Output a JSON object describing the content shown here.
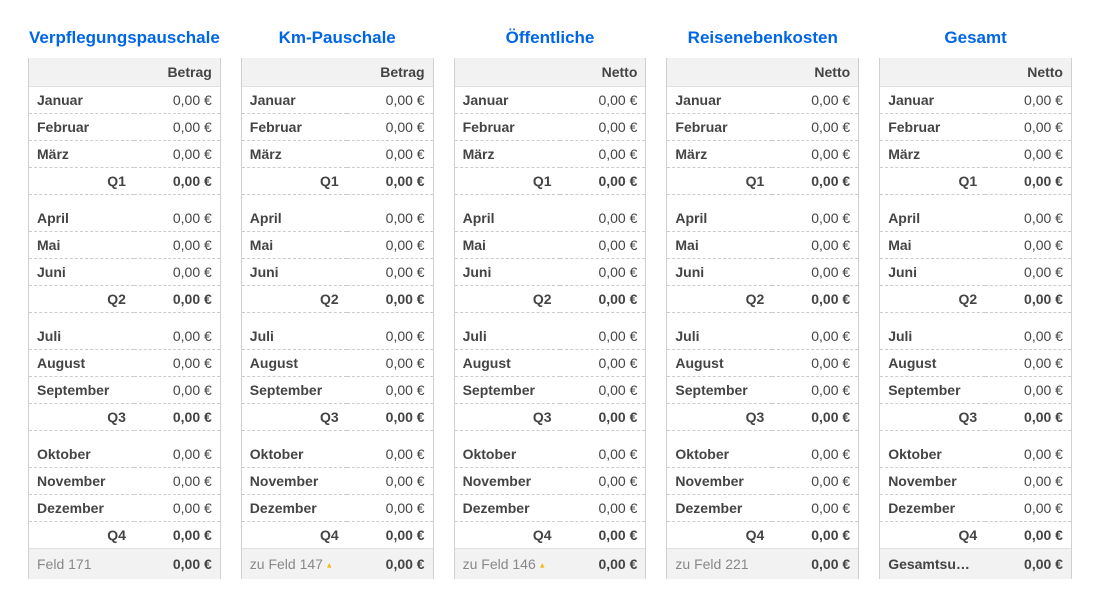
{
  "months": [
    "Januar",
    "Februar",
    "März",
    "April",
    "Mai",
    "Juni",
    "Juli",
    "August",
    "September",
    "Oktober",
    "November",
    "Dezember"
  ],
  "quarters": [
    "Q1",
    "Q2",
    "Q3",
    "Q4"
  ],
  "zero": "0,00 €",
  "columns": [
    {
      "title": "Verpflegungspauschale",
      "headerLabel": "",
      "headerValue": "Betrag",
      "footerLabel": "Feld 171",
      "footerValue": "0,00 €",
      "footerMarker": false,
      "footerBold": false,
      "months": [
        "0,00 €",
        "0,00 €",
        "0,00 €",
        "0,00 €",
        "0,00 €",
        "0,00 €",
        "0,00 €",
        "0,00 €",
        "0,00 €",
        "0,00 €",
        "0,00 €",
        "0,00 €"
      ],
      "quarters": [
        "0,00 €",
        "0,00 €",
        "0,00 €",
        "0,00 €"
      ]
    },
    {
      "title": "Km-Pauschale",
      "headerLabel": "",
      "headerValue": "Betrag",
      "footerLabel": "zu Feld 147",
      "footerValue": "0,00 €",
      "footerMarker": true,
      "footerBold": false,
      "months": [
        "0,00 €",
        "0,00 €",
        "0,00 €",
        "0,00 €",
        "0,00 €",
        "0,00 €",
        "0,00 €",
        "0,00 €",
        "0,00 €",
        "0,00 €",
        "0,00 €",
        "0,00 €"
      ],
      "quarters": [
        "0,00 €",
        "0,00 €",
        "0,00 €",
        "0,00 €"
      ]
    },
    {
      "title": "Öffentliche",
      "headerLabel": "",
      "headerValue": "Netto",
      "footerLabel": "zu Feld 146",
      "footerValue": "0,00 €",
      "footerMarker": true,
      "footerBold": false,
      "months": [
        "0,00 €",
        "0,00 €",
        "0,00 €",
        "0,00 €",
        "0,00 €",
        "0,00 €",
        "0,00 €",
        "0,00 €",
        "0,00 €",
        "0,00 €",
        "0,00 €",
        "0,00 €"
      ],
      "quarters": [
        "0,00 €",
        "0,00 €",
        "0,00 €",
        "0,00 €"
      ]
    },
    {
      "title": "Reisenebenkosten",
      "headerLabel": "",
      "headerValue": "Netto",
      "footerLabel": "zu Feld 221",
      "footerValue": "0,00 €",
      "footerMarker": false,
      "footerBold": false,
      "months": [
        "0,00 €",
        "0,00 €",
        "0,00 €",
        "0,00 €",
        "0,00 €",
        "0,00 €",
        "0,00 €",
        "0,00 €",
        "0,00 €",
        "0,00 €",
        "0,00 €",
        "0,00 €"
      ],
      "quarters": [
        "0,00 €",
        "0,00 €",
        "0,00 €",
        "0,00 €"
      ]
    },
    {
      "title": "Gesamt",
      "headerLabel": "",
      "headerValue": "Netto",
      "footerLabel": "Gesamtsumme",
      "footerValue": "0,00 €",
      "footerMarker": false,
      "footerBold": true,
      "months": [
        "0,00 €",
        "0,00 €",
        "0,00 €",
        "0,00 €",
        "0,00 €",
        "0,00 €",
        "0,00 €",
        "0,00 €",
        "0,00 €",
        "0,00 €",
        "0,00 €",
        "0,00 €"
      ],
      "quarters": [
        "0,00 €",
        "0,00 €",
        "0,00 €",
        "0,00 €"
      ]
    }
  ]
}
